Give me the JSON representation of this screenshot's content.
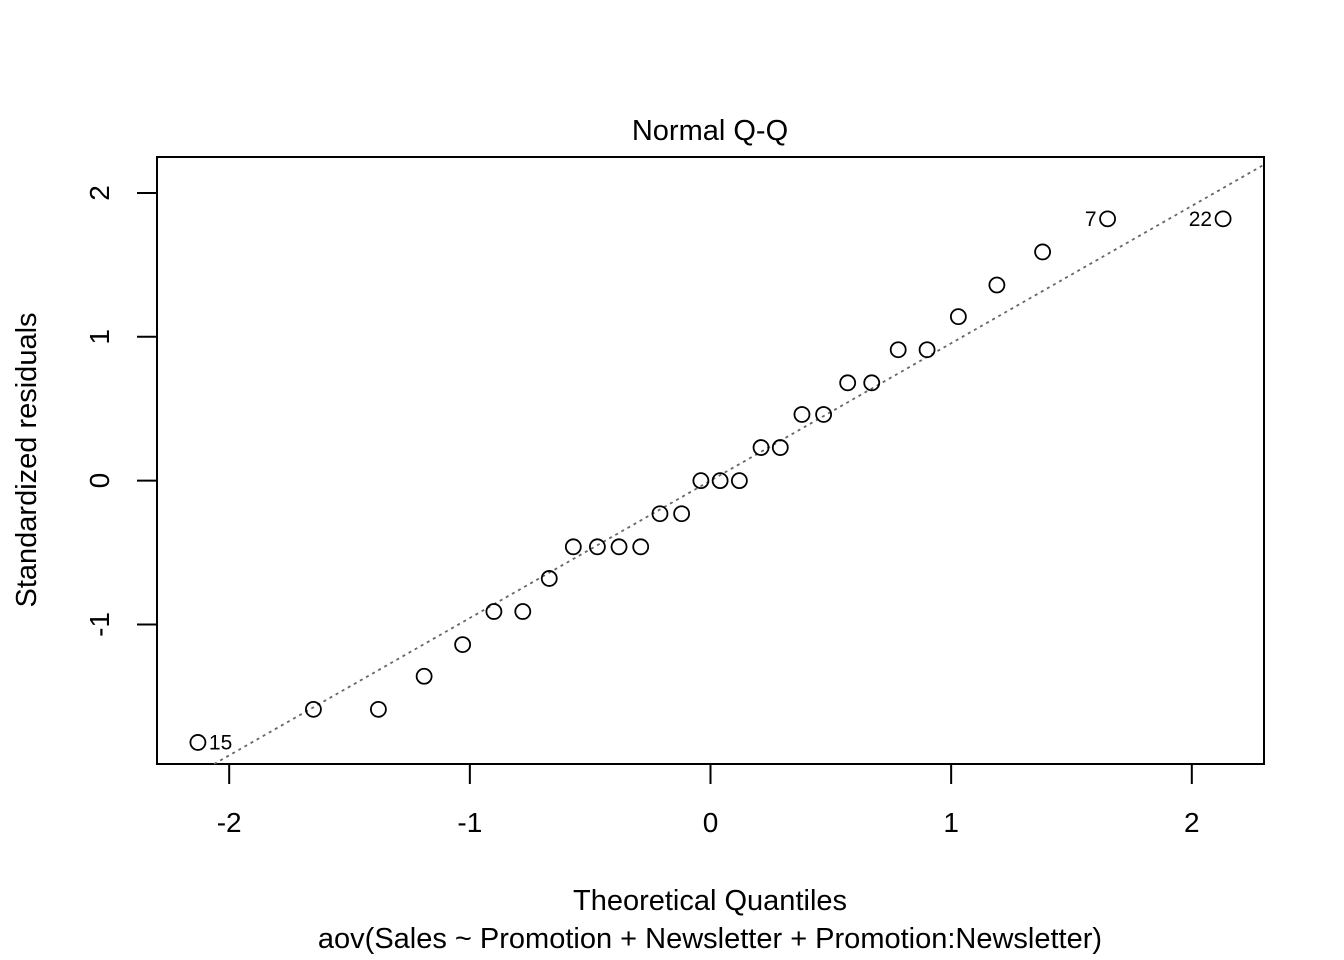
{
  "chart_data": {
    "type": "scatter",
    "title": "Normal Q-Q",
    "xlabel": "Theoretical Quantiles",
    "ylabel": "Standardized residuals",
    "subtitle": "aov(Sales ~ Promotion + Newsletter + Promotion:Newsletter)",
    "xlim": [
      -2.3,
      2.3
    ],
    "ylim": [
      -1.97,
      2.25
    ],
    "xticks": [
      "-2",
      "-1",
      "0",
      "1",
      "2"
    ],
    "yticks": [
      "-1",
      "0",
      "1",
      "2"
    ],
    "grid": false,
    "reference_line": {
      "slope": 0.955,
      "intercept": 0.0,
      "style": "dotted",
      "color": "#666666"
    },
    "points": [
      {
        "x": -2.13,
        "y": -1.82,
        "label": "15"
      },
      {
        "x": -1.65,
        "y": -1.59
      },
      {
        "x": -1.38,
        "y": -1.59
      },
      {
        "x": -1.19,
        "y": -1.36
      },
      {
        "x": -1.03,
        "y": -1.14
      },
      {
        "x": -0.9,
        "y": -0.91
      },
      {
        "x": -0.78,
        "y": -0.91
      },
      {
        "x": -0.67,
        "y": -0.68
      },
      {
        "x": -0.57,
        "y": -0.46
      },
      {
        "x": -0.47,
        "y": -0.46
      },
      {
        "x": -0.38,
        "y": -0.46
      },
      {
        "x": -0.29,
        "y": -0.46
      },
      {
        "x": -0.21,
        "y": -0.23
      },
      {
        "x": -0.12,
        "y": -0.23
      },
      {
        "x": -0.04,
        "y": 0.0
      },
      {
        "x": 0.04,
        "y": 0.0
      },
      {
        "x": 0.12,
        "y": 0.0
      },
      {
        "x": 0.21,
        "y": 0.23
      },
      {
        "x": 0.29,
        "y": 0.23
      },
      {
        "x": 0.38,
        "y": 0.46
      },
      {
        "x": 0.47,
        "y": 0.46
      },
      {
        "x": 0.57,
        "y": 0.68
      },
      {
        "x": 0.67,
        "y": 0.68
      },
      {
        "x": 0.78,
        "y": 0.91
      },
      {
        "x": 0.9,
        "y": 0.91
      },
      {
        "x": 1.03,
        "y": 1.14
      },
      {
        "x": 1.19,
        "y": 1.36
      },
      {
        "x": 1.38,
        "y": 1.59
      },
      {
        "x": 1.65,
        "y": 1.82,
        "label": "7"
      },
      {
        "x": 2.13,
        "y": 1.82,
        "label": "22"
      }
    ]
  }
}
